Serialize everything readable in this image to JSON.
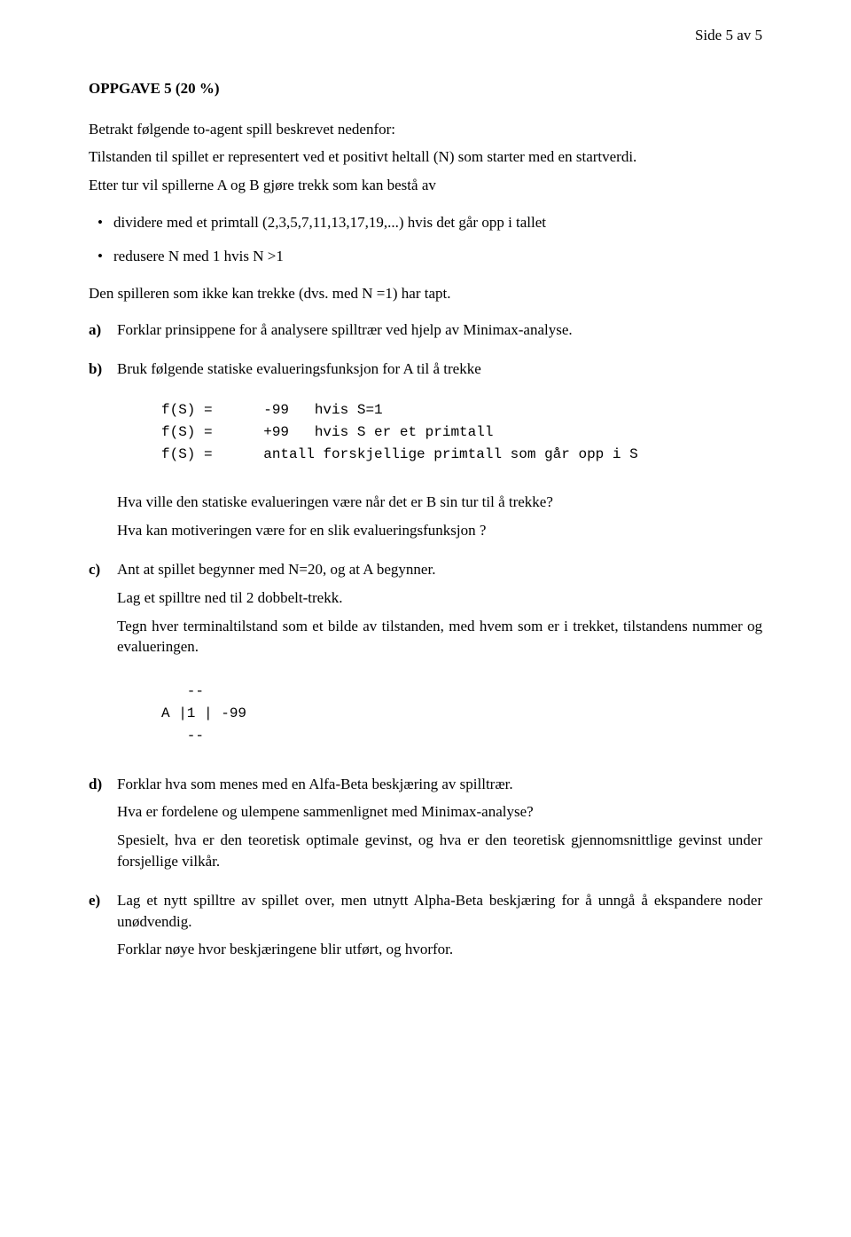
{
  "page_header": "Side 5 av 5",
  "title": "OPPGAVE 5 (20 %)",
  "intro1": "Betrakt følgende to-agent spill beskrevet nedenfor:",
  "intro2": "Tilstanden til spillet er representert ved et positivt heltall (N) som starter med en startverdi.",
  "intro3": "Etter tur vil spillerne A og B gjøre trekk som kan bestå av",
  "bullets": {
    "b1": "dividere med et primtall (2,3,5,7,11,13,17,19,...) hvis det går opp i tallet",
    "b2": "redusere N med 1 hvis N >1"
  },
  "outro": "Den spilleren som ikke kan trekke (dvs. med N =1) har tapt.",
  "questions": {
    "a": {
      "label": "a)",
      "p1": "Forklar prinsippene for å analysere spilltrær ved hjelp av Minimax-analyse."
    },
    "b": {
      "label": "b)",
      "p1": "Bruk følgende statiske evalueringsfunksjon for A til å trekke",
      "code": "f(S) =      -99   hvis S=1\nf(S) =      +99   hvis S er et primtall\nf(S) =      antall forskjellige primtall som går opp i S",
      "p2": "Hva ville den statiske evalueringen være når det er B sin tur til å trekke?",
      "p3": "Hva kan motiveringen være for en slik evalueringsfunksjon ?"
    },
    "c": {
      "label": "c)",
      "p1": "Ant at spillet begynner med N=20, og at A begynner.",
      "p2": "Lag et spilltre ned til 2 dobbelt-trekk.",
      "p3": "Tegn hver terminaltilstand som et bilde av tilstanden, med hvem som er i trekket, tilstandens nummer og evalueringen.",
      "code": "   --\nA |1 | -99\n   --"
    },
    "d": {
      "label": "d)",
      "p1": "Forklar hva som menes med en Alfa-Beta beskjæring av spilltrær.",
      "p2": "Hva er fordelene og ulempene sammenlignet med Minimax-analyse?",
      "p3": "Spesielt, hva er den teoretisk optimale gevinst, og hva er den teoretisk gjennomsnittlige gevinst under forsjellige vilkår."
    },
    "e": {
      "label": "e)",
      "p1": "Lag et nytt spilltre av spillet over, men utnytt Alpha-Beta beskjæring for å unngå å ekspandere noder unødvendig.",
      "p2": "Forklar nøye hvor beskjæringene blir utført, og hvorfor."
    }
  }
}
